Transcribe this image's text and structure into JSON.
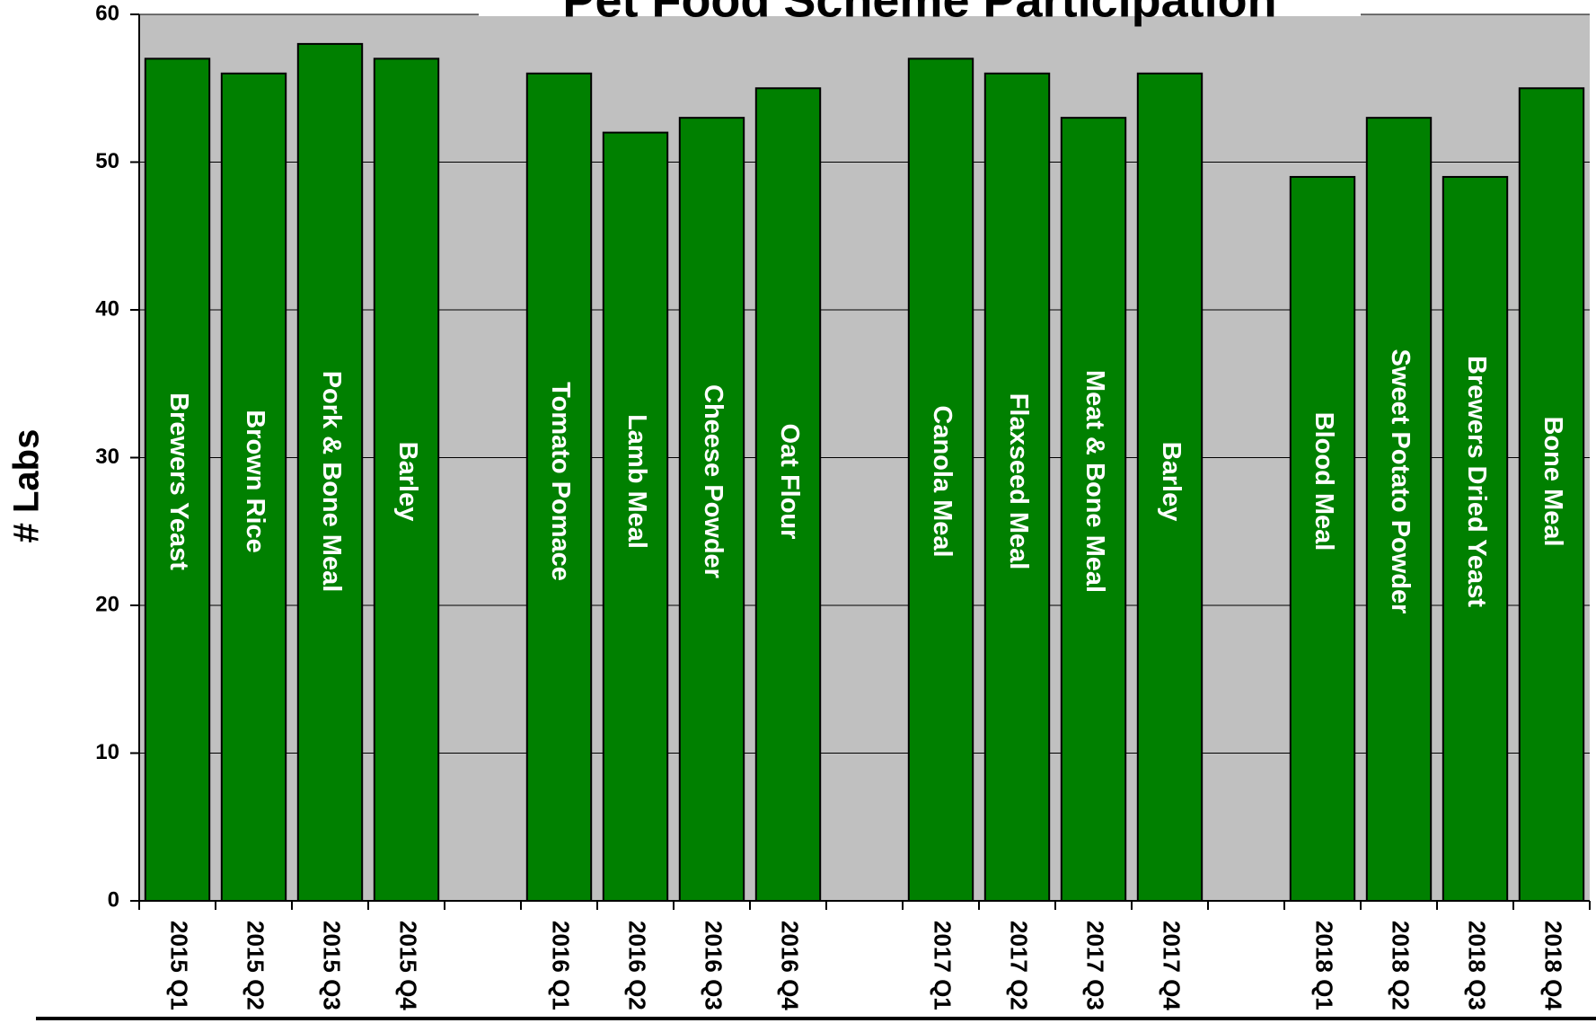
{
  "chart_data": {
    "type": "bar",
    "title": "Pet Food Scheme Participation",
    "y_label": "# Labs",
    "categories": [
      "2015 Q1",
      "2015 Q2",
      "2015 Q3",
      "2015 Q4",
      null,
      "2016 Q1",
      "2016 Q2",
      "2016 Q3",
      "2016 Q4",
      null,
      "2017 Q1",
      "2017 Q2",
      "2017 Q3",
      "2017 Q4",
      null,
      "2018 Q1",
      "2018 Q2",
      "2018 Q3",
      "2018 Q4"
    ],
    "values": [
      57,
      56,
      58,
      57,
      null,
      56,
      52,
      53,
      55,
      null,
      57,
      56,
      53,
      56,
      null,
      49,
      53,
      49,
      55
    ],
    "bar_labels": [
      "Brewers Yeast",
      "Brown Rice",
      "Pork & Bone Meal",
      "Barley",
      null,
      "Tomato Pomace",
      "Lamb Meal",
      "Cheese Powder",
      "Oat Flour",
      null,
      "Canola Meal",
      "Flaxseed Meal",
      "Meat & Bone Meal",
      "Barley",
      null,
      "Blood Meal",
      "Sweet Potato Powder",
      "Brewers Dried Yeast",
      "Bone Meal"
    ],
    "color": "#008000",
    "background": "#c0c0c0",
    "ylim": [
      0,
      60
    ],
    "yticks": [
      0,
      10,
      20,
      30,
      40,
      50,
      60
    ],
    "grid": true
  }
}
